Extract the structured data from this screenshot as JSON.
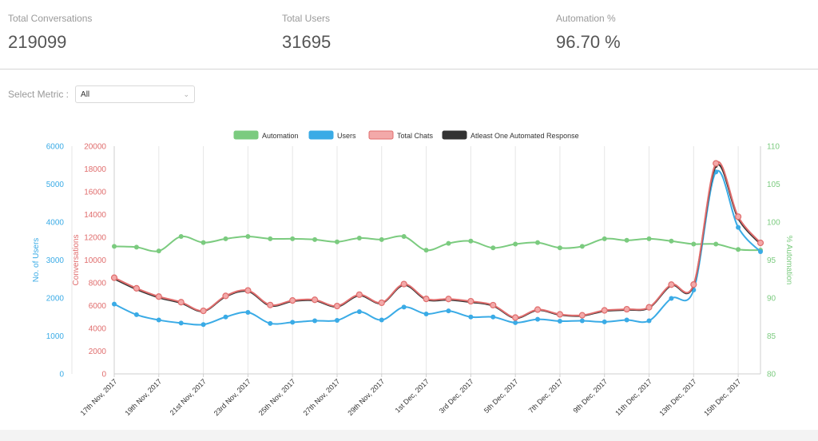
{
  "stats": {
    "conversations": {
      "label": "Total Conversations",
      "value": "219099"
    },
    "users": {
      "label": "Total Users",
      "value": "31695"
    },
    "automation": {
      "label": "Automation %",
      "value": "96.70 %"
    }
  },
  "metric": {
    "label": "Select Metric :",
    "selected": "All"
  },
  "colors": {
    "automation": "#7bcb7f",
    "users": "#3aabe6",
    "chats": "#e06d6d",
    "chats_fill": "#f3a9a9",
    "atleast": "#333333"
  },
  "chart_data": {
    "type": "line",
    "legend": [
      "Automation",
      "Users",
      "Total Chats",
      "Atleast One Automated Response"
    ],
    "legend_position": "top-center",
    "categories": [
      "17th Nov, 2017",
      "18th Nov, 2017",
      "19th Nov, 2017",
      "20th Nov, 2017",
      "21st Nov, 2017",
      "22nd Nov, 2017",
      "23rd Nov, 2017",
      "24th Nov, 2017",
      "25th Nov, 2017",
      "26th Nov, 2017",
      "27th Nov, 2017",
      "28th Nov, 2017",
      "29th Nov, 2017",
      "30th Nov, 2017",
      "1st Dec, 2017",
      "2nd Dec, 2017",
      "3rd Dec, 2017",
      "4th Dec, 2017",
      "5th Dec, 2017",
      "6th Dec, 2017",
      "7th Dec, 2017",
      "8th Dec, 2017",
      "9th Dec, 2017",
      "10th Dec, 2017",
      "11th Dec, 2017",
      "12th Dec, 2017",
      "13th Dec, 2017",
      "14th Dec, 2017",
      "15th Dec, 2017",
      "16th Dec, 2017"
    ],
    "x_tick_labels": [
      "17th Nov, 2017",
      "19th Nov, 2017",
      "21st Nov, 2017",
      "23rd Nov, 2017",
      "25th Nov, 2017",
      "27th Nov, 2017",
      "29th Nov, 2017",
      "1st Dec, 2017",
      "3rd Dec, 2017",
      "5th Dec, 2017",
      "7th Dec, 2017",
      "9th Dec, 2017",
      "11th Dec, 2017",
      "13th Dec, 2017",
      "15th Dec, 2017"
    ],
    "axes": {
      "users": {
        "label": "No. of Users",
        "ylim": [
          0,
          6000
        ],
        "ticks": [
          "0",
          "1000",
          "2000",
          "3000",
          "4000",
          "5000",
          "6000"
        ]
      },
      "conversations": {
        "label": "Conversations",
        "ylim": [
          0,
          20000
        ],
        "ticks": [
          "0",
          "2000",
          "4000",
          "6000",
          "8000",
          "10000",
          "12000",
          "14000",
          "16000",
          "18000",
          "20000"
        ]
      },
      "automation": {
        "label": "% Automation",
        "ylim": [
          80,
          110
        ],
        "ticks": [
          "80",
          "85",
          "90",
          "95",
          "100",
          "105",
          "110"
        ]
      }
    },
    "series": [
      {
        "name": "Automation",
        "axis": "automation",
        "values": [
          96.8,
          96.7,
          96.2,
          98.1,
          97.3,
          97.8,
          98.1,
          97.8,
          97.8,
          97.7,
          97.4,
          97.9,
          97.7,
          98.1,
          96.3,
          97.2,
          97.5,
          96.6,
          97.1,
          97.3,
          96.6,
          96.8,
          97.8,
          97.6,
          97.8,
          97.5,
          97.1,
          97.1,
          96.4,
          96.3
        ]
      },
      {
        "name": "Users",
        "axis": "users",
        "values": [
          1840,
          1560,
          1420,
          1340,
          1300,
          1500,
          1620,
          1330,
          1360,
          1400,
          1410,
          1640,
          1420,
          1760,
          1580,
          1660,
          1500,
          1500,
          1350,
          1440,
          1390,
          1400,
          1370,
          1420,
          1400,
          1990,
          2210,
          5320,
          3860,
          3220
        ]
      },
      {
        "name": "Total Chats",
        "axis": "conversations",
        "values": [
          8450,
          7520,
          6790,
          6300,
          5540,
          6850,
          7330,
          6050,
          6450,
          6510,
          5960,
          6960,
          6250,
          7890,
          6590,
          6580,
          6380,
          6040,
          4950,
          5650,
          5230,
          5150,
          5580,
          5680,
          5850,
          7840,
          7850,
          18490,
          13810,
          11510
        ]
      },
      {
        "name": "Atleast One Automated Response",
        "axis": "conversations",
        "values": [
          8350,
          7420,
          6700,
          6220,
          5500,
          6780,
          7250,
          5980,
          6380,
          6440,
          5900,
          6880,
          6200,
          7800,
          6520,
          6500,
          6300,
          5980,
          4900,
          5600,
          5180,
          5100,
          5520,
          5620,
          5800,
          7760,
          7780,
          18250,
          13650,
          11400
        ]
      }
    ]
  }
}
